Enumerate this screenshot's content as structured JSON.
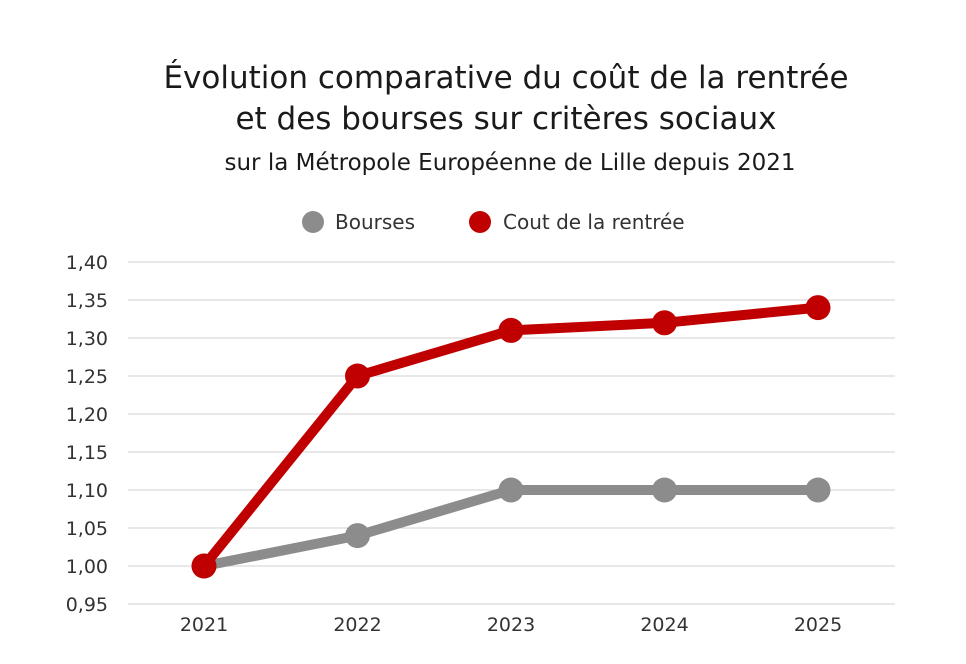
{
  "chart_data": {
    "type": "line",
    "title": "Évolution comparative du coût de la rentrée",
    "title_line2": "et des bourses sur critères sociaux",
    "subtitle": "sur la Métropole Européenne de Lille depuis 2021",
    "categories": [
      "2021",
      "2022",
      "2023",
      "2024",
      "2025"
    ],
    "series": [
      {
        "name": "Bourses",
        "color": "#8c8c8c",
        "values": [
          1.0,
          1.04,
          1.1,
          1.1,
          1.1
        ]
      },
      {
        "name": "Cout de la rentrée",
        "color": "#c00000",
        "values": [
          1.0,
          1.25,
          1.31,
          1.32,
          1.34
        ]
      }
    ],
    "ylim": [
      0.95,
      1.4
    ],
    "yticks": [
      {
        "value": 0.95,
        "label": "0,95"
      },
      {
        "value": 1.0,
        "label": "1,00"
      },
      {
        "value": 1.05,
        "label": "1,05"
      },
      {
        "value": 1.1,
        "label": "1,10"
      },
      {
        "value": 1.15,
        "label": "1,15"
      },
      {
        "value": 1.2,
        "label": "1,20"
      },
      {
        "value": 1.25,
        "label": "1,25"
      },
      {
        "value": 1.3,
        "label": "1,30"
      },
      {
        "value": 1.35,
        "label": "1,35"
      },
      {
        "value": 1.4,
        "label": "1,40"
      }
    ],
    "legend_position": "top-center",
    "grid": true
  }
}
